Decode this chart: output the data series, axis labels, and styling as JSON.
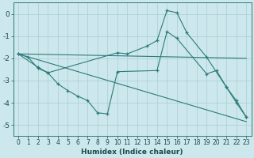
{
  "xlabel": "Humidex (Indice chaleur)",
  "background_color": "#cce8ec",
  "grid_color": "#aaccd4",
  "line_color": "#2d7a7a",
  "xlim": [
    -0.5,
    23.5
  ],
  "ylim": [
    -5.5,
    0.5
  ],
  "yticks": [
    0,
    -1,
    -2,
    -3,
    -4,
    -5
  ],
  "xticks": [
    0,
    1,
    2,
    3,
    4,
    5,
    6,
    7,
    8,
    9,
    10,
    11,
    12,
    13,
    14,
    15,
    16,
    17,
    18,
    19,
    20,
    21,
    22,
    23
  ],
  "series": [
    {
      "x": [
        0,
        1,
        2,
        3,
        10,
        11,
        13,
        14,
        15,
        16,
        17,
        19,
        21,
        22,
        23
      ],
      "y": [
        -1.8,
        -1.95,
        -2.45,
        -2.65,
        -1.75,
        -1.8,
        -1.45,
        -1.2,
        0.15,
        0.05,
        -0.85,
        -1.95,
        -3.3,
        -4.0,
        -4.65
      ],
      "has_marker": true
    },
    {
      "x": [
        0,
        2,
        3,
        4,
        5,
        6,
        7,
        8,
        9,
        10,
        14,
        15,
        16,
        19,
        20,
        21,
        22,
        23
      ],
      "y": [
        -1.8,
        -2.4,
        -2.65,
        -3.15,
        -3.45,
        -3.7,
        -3.9,
        -4.45,
        -4.5,
        -2.6,
        -2.55,
        -0.8,
        -1.1,
        -2.7,
        -2.55,
        -3.3,
        -3.9,
        -4.65
      ],
      "has_marker": true
    },
    {
      "x": [
        0,
        23
      ],
      "y": [
        -1.8,
        -2.0
      ],
      "has_marker": false
    },
    {
      "x": [
        0,
        23
      ],
      "y": [
        -1.8,
        -4.85
      ],
      "has_marker": false
    }
  ]
}
